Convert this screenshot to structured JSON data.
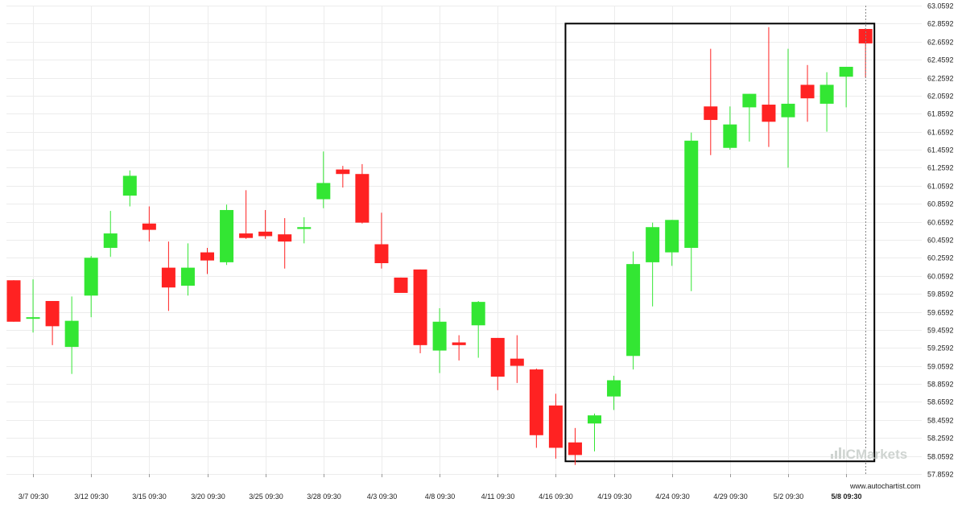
{
  "chart_data": {
    "type": "candlestick",
    "colors": {
      "up": "#33e633",
      "down": "#ff2222",
      "grid": "#ececec",
      "highlight_box": "#000000"
    },
    "y_ticks": [
      "57.8592",
      "58.0592",
      "58.2592",
      "58.4592",
      "58.6592",
      "58.8592",
      "59.0592",
      "59.2592",
      "59.4592",
      "59.6592",
      "59.8592",
      "60.0592",
      "60.2592",
      "60.4592",
      "60.6592",
      "60.8592",
      "61.0592",
      "61.2592",
      "61.4592",
      "61.6592",
      "61.8592",
      "62.0592",
      "62.2592",
      "62.4592",
      "62.6592",
      "62.8592",
      "63.0592"
    ],
    "ylim": [
      57.8592,
      63.0592
    ],
    "x_tick_labels": [
      {
        "label": "3/7 09:30",
        "index": 1
      },
      {
        "label": "3/12 09:30",
        "index": 4
      },
      {
        "label": "3/15 09:30",
        "index": 7
      },
      {
        "label": "3/20 09:30",
        "index": 10
      },
      {
        "label": "3/25 09:30",
        "index": 13
      },
      {
        "label": "3/28 09:30",
        "index": 16
      },
      {
        "label": "4/3 09:30",
        "index": 19
      },
      {
        "label": "4/8 09:30",
        "index": 22
      },
      {
        "label": "4/11 09:30",
        "index": 25
      },
      {
        "label": "4/16 09:30",
        "index": 28
      },
      {
        "label": "4/19 09:30",
        "index": 31
      },
      {
        "label": "4/24 09:30",
        "index": 34
      },
      {
        "label": "4/29 09:30",
        "index": 37
      },
      {
        "label": "5/2 09:30",
        "index": 40
      },
      {
        "label": "5/8 09:30",
        "index": 43,
        "bold": true
      }
    ],
    "candles": [
      {
        "o": 60.01,
        "h": 60.01,
        "l": 59.55,
        "c": 59.55
      },
      {
        "o": 59.6,
        "h": 60.02,
        "l": 59.43,
        "c": 59.6
      },
      {
        "o": 59.78,
        "h": 59.78,
        "l": 59.29,
        "c": 59.5
      },
      {
        "o": 59.27,
        "h": 59.83,
        "l": 58.97,
        "c": 59.56
      },
      {
        "o": 59.84,
        "h": 60.28,
        "l": 59.6,
        "c": 60.26
      },
      {
        "o": 60.37,
        "h": 60.78,
        "l": 60.27,
        "c": 60.53
      },
      {
        "o": 60.95,
        "h": 61.23,
        "l": 60.83,
        "c": 61.17
      },
      {
        "o": 60.64,
        "h": 60.83,
        "l": 60.44,
        "c": 60.57
      },
      {
        "o": 60.15,
        "h": 60.44,
        "l": 59.67,
        "c": 59.93
      },
      {
        "o": 59.95,
        "h": 60.42,
        "l": 59.84,
        "c": 60.15
      },
      {
        "o": 60.32,
        "h": 60.37,
        "l": 60.08,
        "c": 60.23
      },
      {
        "o": 60.21,
        "h": 60.85,
        "l": 60.18,
        "c": 60.79
      },
      {
        "o": 60.53,
        "h": 61.01,
        "l": 60.47,
        "c": 60.48
      },
      {
        "o": 60.55,
        "h": 60.79,
        "l": 60.47,
        "c": 60.5
      },
      {
        "o": 60.52,
        "h": 60.7,
        "l": 60.14,
        "c": 60.44
      },
      {
        "o": 60.58,
        "h": 60.71,
        "l": 60.42,
        "c": 60.6
      },
      {
        "o": 60.91,
        "h": 61.44,
        "l": 60.81,
        "c": 61.09
      },
      {
        "o": 61.24,
        "h": 61.28,
        "l": 61.04,
        "c": 61.19
      },
      {
        "o": 61.19,
        "h": 61.3,
        "l": 60.64,
        "c": 60.65
      },
      {
        "o": 60.41,
        "h": 60.76,
        "l": 60.14,
        "c": 60.2
      },
      {
        "o": 60.04,
        "h": 60.04,
        "l": 59.89,
        "c": 59.87
      },
      {
        "o": 60.13,
        "h": 60.13,
        "l": 59.2,
        "c": 59.29
      },
      {
        "o": 59.23,
        "h": 59.7,
        "l": 58.98,
        "c": 59.55
      },
      {
        "o": 59.32,
        "h": 59.4,
        "l": 59.12,
        "c": 59.29
      },
      {
        "o": 59.51,
        "h": 59.78,
        "l": 59.15,
        "c": 59.77
      },
      {
        "o": 59.37,
        "h": 59.37,
        "l": 58.79,
        "c": 58.94
      },
      {
        "o": 59.14,
        "h": 59.4,
        "l": 58.87,
        "c": 59.06
      },
      {
        "o": 59.02,
        "h": 59.03,
        "l": 58.15,
        "c": 58.29
      },
      {
        "o": 58.62,
        "h": 58.75,
        "l": 58.03,
        "c": 58.15
      },
      {
        "o": 58.21,
        "h": 58.37,
        "l": 57.96,
        "c": 58.07
      },
      {
        "o": 58.42,
        "h": 58.53,
        "l": 58.11,
        "c": 58.51
      },
      {
        "o": 58.72,
        "h": 58.95,
        "l": 58.57,
        "c": 58.9
      },
      {
        "o": 59.17,
        "h": 60.33,
        "l": 59.02,
        "c": 60.19
      },
      {
        "o": 60.21,
        "h": 60.65,
        "l": 59.72,
        "c": 60.6
      },
      {
        "o": 60.32,
        "h": 60.68,
        "l": 60.17,
        "c": 60.68
      },
      {
        "o": 60.37,
        "h": 61.65,
        "l": 59.89,
        "c": 61.56
      },
      {
        "o": 61.94,
        "h": 62.58,
        "l": 61.4,
        "c": 61.79
      },
      {
        "o": 61.48,
        "h": 61.94,
        "l": 61.46,
        "c": 61.74
      },
      {
        "o": 61.93,
        "h": 62.08,
        "l": 61.55,
        "c": 62.08
      },
      {
        "o": 61.96,
        "h": 62.82,
        "l": 61.49,
        "c": 61.77
      },
      {
        "o": 61.82,
        "h": 62.58,
        "l": 61.26,
        "c": 61.97
      },
      {
        "o": 62.18,
        "h": 62.4,
        "l": 61.77,
        "c": 62.03
      },
      {
        "o": 61.97,
        "h": 62.32,
        "l": 61.66,
        "c": 62.18
      },
      {
        "o": 62.27,
        "h": 62.38,
        "l": 61.93,
        "c": 62.38
      },
      {
        "o": 62.8,
        "h": 62.81,
        "l": 62.26,
        "c": 62.64
      }
    ],
    "highlight_range": {
      "start_index": 29,
      "end_index": 44,
      "low": 58.0,
      "high": 62.86
    },
    "current_marker_index": 44
  },
  "watermark": {
    "brand": "ICMarkets",
    "site": "www.autochartist.com"
  }
}
